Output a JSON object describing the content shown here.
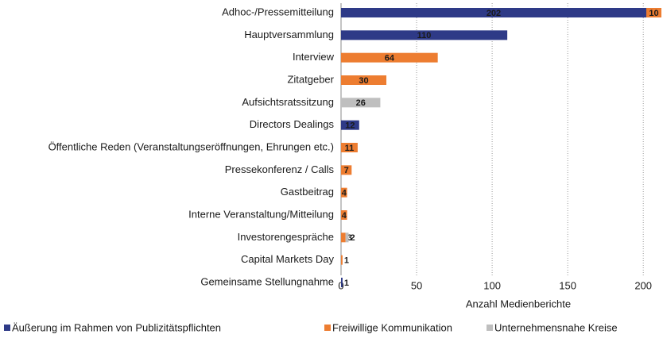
{
  "chart_data": {
    "type": "stacked-barh",
    "x_label": "Anzahl Medienberichte",
    "categories": [
      "Adhoc-/Pressemitteilung",
      "Hauptversammlung",
      "Interview",
      "Zitatgeber",
      "Aufsichtsratssitzung",
      "Directors Dealings",
      "Öffentliche Reden (Veranstaltungseröffnungen, Ehrungen etc.)",
      "Pressekonferenz / Calls",
      "Gastbeitrag",
      "Interne Veranstaltung/Mitteilung",
      "Investorengespräche",
      "Capital Markets Day",
      "Gemeinsame Stellungnahme"
    ],
    "series": [
      {
        "name": "Äußerung im Rahmen von Publizitätspflichten",
        "color": "#2e3a87",
        "label_color": "#ffffff",
        "values": [
          202,
          110,
          null,
          null,
          null,
          12,
          null,
          null,
          null,
          null,
          null,
          null,
          1
        ]
      },
      {
        "name": "Freiwillige Kommunikation",
        "color": "#ed7d31",
        "label_color": "#1a1a1a",
        "values": [
          10,
          null,
          64,
          30,
          null,
          null,
          11,
          7,
          4,
          4,
          3,
          1,
          null
        ]
      },
      {
        "name": "Unternehmensnahe Kreise",
        "color": "#bfbfbf",
        "label_color": "#ffffff",
        "values": [
          null,
          null,
          null,
          null,
          26,
          null,
          null,
          null,
          null,
          null,
          2,
          null,
          null
        ]
      }
    ],
    "xlim": [
      0,
      212
    ],
    "xticks": [
      0,
      50,
      100,
      150,
      200
    ],
    "grid": true,
    "legend": "bottom"
  }
}
